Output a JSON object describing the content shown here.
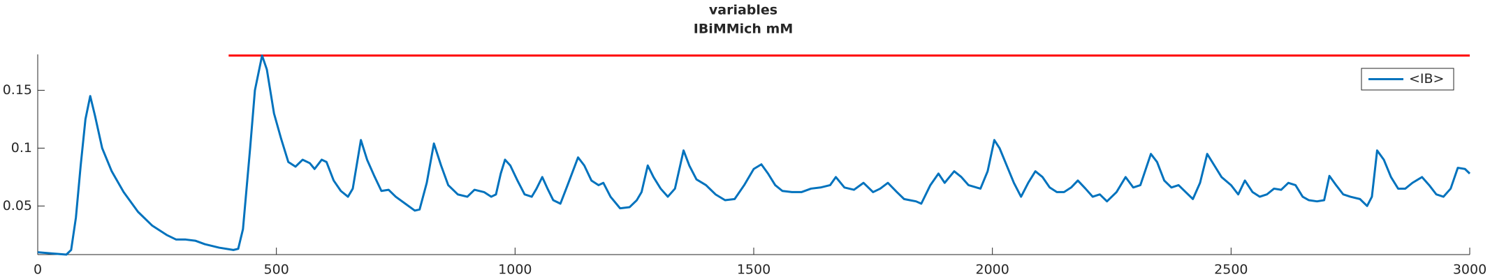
{
  "chart_data": {
    "type": "line",
    "title": "variables",
    "subtitle": "IBiMMich mM",
    "xlim": [
      0,
      3000
    ],
    "xticks": [
      0,
      500,
      1000,
      1500,
      2000,
      2500,
      3000
    ],
    "ylim": [
      0.008,
      0.181
    ],
    "yticks": [
      0.05,
      0.1,
      0.15
    ],
    "legend": "top-right",
    "reference_line": {
      "x": [
        400,
        3000
      ],
      "value": 0.18,
      "color": "#ff0000"
    },
    "x": [
      0,
      30,
      60,
      70,
      80,
      90,
      100,
      110,
      120,
      135,
      155,
      180,
      210,
      240,
      270,
      290,
      310,
      330,
      350,
      380,
      410,
      420,
      430,
      445,
      455,
      470,
      480,
      495,
      510,
      525,
      540,
      555,
      570,
      580,
      595,
      605,
      620,
      635,
      650,
      660,
      677,
      690,
      705,
      720,
      735,
      750,
      770,
      790,
      800,
      815,
      830,
      845,
      860,
      880,
      900,
      915,
      935,
      950,
      960,
      970,
      979,
      990,
      1005,
      1020,
      1035,
      1045,
      1057,
      1068,
      1080,
      1095,
      1110,
      1132,
      1145,
      1160,
      1175,
      1185,
      1200,
      1220,
      1240,
      1255,
      1265,
      1278,
      1290,
      1305,
      1320,
      1335,
      1353,
      1365,
      1380,
      1400,
      1420,
      1440,
      1460,
      1480,
      1500,
      1516,
      1530,
      1545,
      1560,
      1580,
      1600,
      1620,
      1640,
      1660,
      1672,
      1690,
      1710,
      1730,
      1750,
      1765,
      1781,
      1800,
      1815,
      1827,
      1840,
      1851,
      1870,
      1887,
      1900,
      1920,
      1935,
      1950,
      1975,
      1990,
      2004,
      2015,
      2030,
      2045,
      2060,
      2075,
      2090,
      2105,
      2120,
      2135,
      2150,
      2165,
      2179,
      2195,
      2210,
      2225,
      2240,
      2260,
      2279,
      2295,
      2310,
      2332,
      2345,
      2360,
      2375,
      2390,
      2405,
      2420,
      2435,
      2450,
      2465,
      2480,
      2500,
      2515,
      2529,
      2545,
      2560,
      2575,
      2590,
      2605,
      2620,
      2635,
      2650,
      2663,
      2680,
      2695,
      2706,
      2720,
      2735,
      2750,
      2770,
      2785,
      2795,
      2806,
      2820,
      2835,
      2850,
      2865,
      2880,
      2900,
      2915,
      2930,
      2945,
      2960,
      2975,
      2990,
      3000
    ],
    "series": [
      {
        "name": "<IB>",
        "color": "#0072bd",
        "values": [
          0.01,
          0.009,
          0.008,
          0.012,
          0.04,
          0.085,
          0.125,
          0.145,
          0.128,
          0.1,
          0.08,
          0.062,
          0.045,
          0.033,
          0.025,
          0.021,
          0.021,
          0.02,
          0.017,
          0.014,
          0.012,
          0.013,
          0.03,
          0.1,
          0.15,
          0.18,
          0.168,
          0.13,
          0.108,
          0.088,
          0.084,
          0.09,
          0.087,
          0.082,
          0.09,
          0.088,
          0.072,
          0.063,
          0.058,
          0.065,
          0.107,
          0.09,
          0.076,
          0.063,
          0.064,
          0.058,
          0.052,
          0.046,
          0.047,
          0.07,
          0.104,
          0.085,
          0.068,
          0.06,
          0.058,
          0.064,
          0.062,
          0.058,
          0.06,
          0.078,
          0.09,
          0.085,
          0.072,
          0.06,
          0.058,
          0.065,
          0.075,
          0.065,
          0.055,
          0.052,
          0.068,
          0.092,
          0.085,
          0.072,
          0.068,
          0.07,
          0.058,
          0.048,
          0.049,
          0.055,
          0.062,
          0.085,
          0.075,
          0.065,
          0.058,
          0.065,
          0.098,
          0.085,
          0.073,
          0.068,
          0.06,
          0.055,
          0.056,
          0.068,
          0.082,
          0.086,
          0.078,
          0.068,
          0.063,
          0.062,
          0.062,
          0.065,
          0.066,
          0.068,
          0.075,
          0.066,
          0.064,
          0.07,
          0.062,
          0.065,
          0.07,
          0.062,
          0.056,
          0.055,
          0.054,
          0.052,
          0.068,
          0.078,
          0.07,
          0.08,
          0.075,
          0.068,
          0.065,
          0.08,
          0.107,
          0.1,
          0.085,
          0.07,
          0.058,
          0.07,
          0.08,
          0.075,
          0.066,
          0.062,
          0.062,
          0.066,
          0.072,
          0.065,
          0.058,
          0.06,
          0.054,
          0.062,
          0.075,
          0.066,
          0.068,
          0.095,
          0.088,
          0.072,
          0.066,
          0.068,
          0.062,
          0.056,
          0.07,
          0.095,
          0.085,
          0.075,
          0.068,
          0.06,
          0.072,
          0.062,
          0.058,
          0.06,
          0.065,
          0.064,
          0.07,
          0.068,
          0.058,
          0.055,
          0.054,
          0.055,
          0.076,
          0.068,
          0.06,
          0.058,
          0.056,
          0.05,
          0.058,
          0.098,
          0.09,
          0.075,
          0.065,
          0.065,
          0.07,
          0.075,
          0.068,
          0.06,
          0.058,
          0.065,
          0.083,
          0.082,
          0.078
        ]
      }
    ]
  }
}
